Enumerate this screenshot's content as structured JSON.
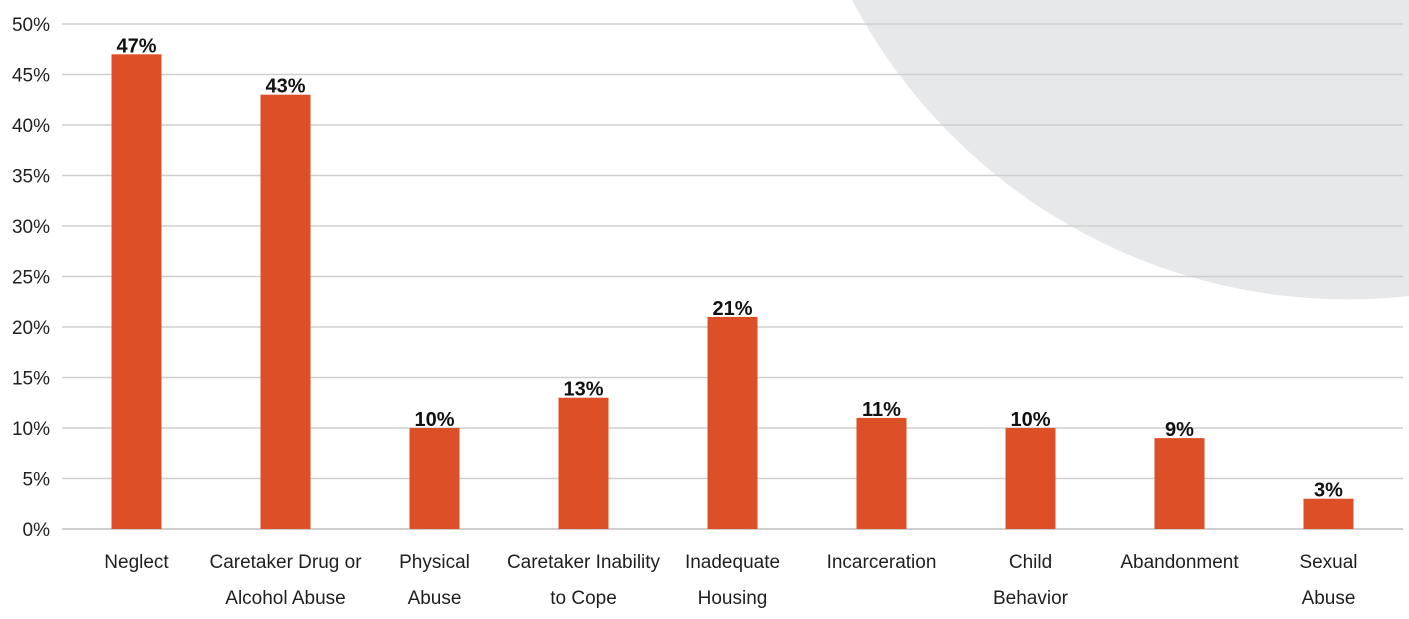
{
  "chart_data": {
    "type": "bar",
    "categories": [
      [
        "Neglect"
      ],
      [
        "Caretaker Drug or",
        "Alcohol Abuse"
      ],
      [
        "Physical",
        "Abuse"
      ],
      [
        "Caretaker Inability",
        "to Cope"
      ],
      [
        "Inadequate",
        "Housing"
      ],
      [
        "Incarceration"
      ],
      [
        "Child",
        "Behavior"
      ],
      [
        "Abandonment"
      ],
      [
        "Sexual",
        "Abuse"
      ]
    ],
    "values": [
      47,
      43,
      10,
      13,
      21,
      11,
      10,
      9,
      3
    ],
    "value_labels": [
      "47%",
      "43%",
      "10%",
      "13%",
      "21%",
      "11%",
      "10%",
      "9%",
      "3%"
    ],
    "y_ticks": [
      "0%",
      "5%",
      "10%",
      "15%",
      "20%",
      "25%",
      "30%",
      "35%",
      "40%",
      "45%",
      "50%"
    ],
    "ylim": [
      0,
      50
    ],
    "y_unit": "%",
    "grid": true,
    "legend": "none",
    "colors": {
      "bar": "#DD4F27",
      "grid": "#CFCFCF",
      "background_shape": "#E7E8EA",
      "text": "#1f1f1f"
    }
  }
}
